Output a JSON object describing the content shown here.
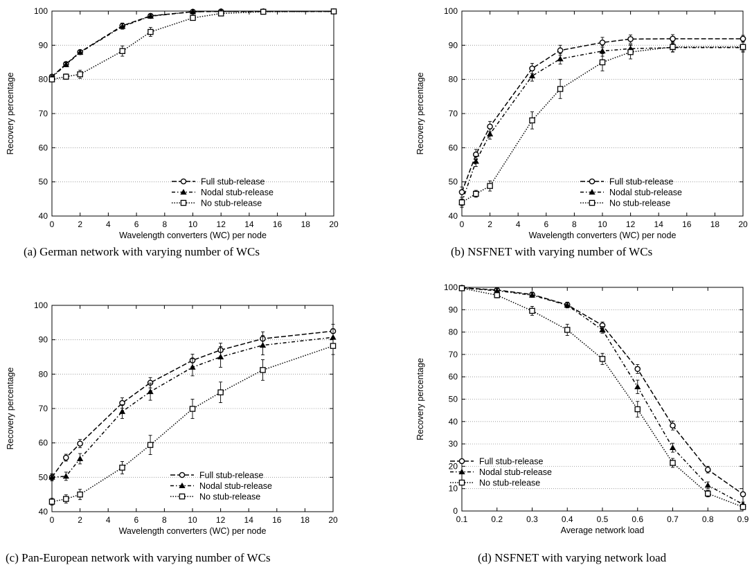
{
  "chart_data": [
    {
      "type": "line",
      "caption": "(a) German network with varying number of WCs",
      "xlabel": "Wavelength converters (WC) per node",
      "ylabel": "Recovery percentage",
      "x_ticks": [
        0,
        2,
        4,
        6,
        8,
        10,
        12,
        14,
        16,
        18,
        20
      ],
      "y_ticks": [
        40,
        50,
        60,
        70,
        80,
        90,
        100
      ],
      "xlim": [
        0,
        20
      ],
      "ylim": [
        40,
        100
      ],
      "grid": "horizontal",
      "legend_position": "bottom-right",
      "x": [
        0,
        1,
        2,
        5,
        7,
        10,
        12,
        15,
        20
      ],
      "series": [
        {
          "name": "Full stub-release",
          "marker": "circle",
          "dash": "long-dash",
          "values": [
            80.8,
            84.5,
            88.0,
            95.7,
            98.6,
            99.8,
            99.9,
            99.9,
            99.9
          ],
          "errors": [
            0.5,
            0.6,
            0.6,
            0.8,
            0.5,
            0.2,
            0.1,
            0.1,
            0.1
          ]
        },
        {
          "name": "Nodal stub-release",
          "marker": "triangle",
          "dash": "dash-dot",
          "values": [
            80.6,
            84.3,
            87.9,
            95.5,
            98.5,
            99.8,
            99.9,
            99.9,
            99.9
          ],
          "errors": [
            0.5,
            0.6,
            0.6,
            0.8,
            0.5,
            0.2,
            0.1,
            0.1,
            0.1
          ]
        },
        {
          "name": "No stub-release",
          "marker": "square",
          "dash": "dotted",
          "values": [
            80.0,
            80.8,
            81.5,
            88.3,
            93.9,
            98.0,
            99.3,
            99.8,
            99.9
          ],
          "errors": [
            0.7,
            0.8,
            1.2,
            1.5,
            1.3,
            0.6,
            0.3,
            0.1,
            0.1
          ]
        }
      ]
    },
    {
      "type": "line",
      "caption": "(b) NSFNET with varying number of WCs",
      "xlabel": "Wavelength converters (WC) per node",
      "ylabel": "Recovery percentage",
      "x_ticks": [
        0,
        2,
        4,
        6,
        8,
        10,
        12,
        14,
        16,
        18,
        20
      ],
      "y_ticks": [
        40,
        50,
        60,
        70,
        80,
        90,
        100
      ],
      "xlim": [
        0,
        20
      ],
      "ylim": [
        40,
        100
      ],
      "grid": "horizontal",
      "legend_position": "bottom-right",
      "x": [
        0,
        1,
        2,
        5,
        7,
        10,
        12,
        15,
        20
      ],
      "series": [
        {
          "name": "Full stub-release",
          "marker": "circle",
          "dash": "long-dash",
          "values": [
            47.0,
            58.0,
            66.2,
            83.2,
            88.5,
            90.8,
            91.8,
            91.9,
            91.9
          ],
          "errors": [
            1.5,
            1.5,
            1.5,
            1.5,
            1.5,
            1.5,
            1.2,
            1.2,
            1.0
          ]
        },
        {
          "name": "Nodal stub-release",
          "marker": "triangle",
          "dash": "dash-dot",
          "values": [
            44.0,
            56.0,
            64.0,
            81.0,
            86.0,
            88.3,
            89.0,
            89.3,
            89.3
          ],
          "errors": [
            1.5,
            1.5,
            1.5,
            1.5,
            1.5,
            1.5,
            1.2,
            1.2,
            1.0
          ]
        },
        {
          "name": "No stub-release",
          "marker": "square",
          "dash": "dotted",
          "values": [
            44.0,
            46.5,
            48.8,
            68.0,
            77.2,
            85.0,
            88.0,
            89.5,
            89.5
          ],
          "errors": [
            1.0,
            1.0,
            1.5,
            2.5,
            2.8,
            2.5,
            2.0,
            1.5,
            1.5
          ]
        }
      ]
    },
    {
      "type": "line",
      "caption": "(c) Pan-European network with varying number of WCs",
      "xlabel": "Wavelength converters (WC) per node",
      "ylabel": "Recovery percentage",
      "x_ticks": [
        0,
        2,
        4,
        6,
        8,
        10,
        12,
        14,
        16,
        18,
        20
      ],
      "y_ticks": [
        40,
        50,
        60,
        70,
        80,
        90,
        100
      ],
      "xlim": [
        0,
        20
      ],
      "ylim": [
        40,
        100
      ],
      "grid": "horizontal",
      "legend_position": "bottom-right",
      "x": [
        0,
        1,
        2,
        5,
        7,
        10,
        12,
        15,
        20
      ],
      "series": [
        {
          "name": "Full stub-release",
          "marker": "circle",
          "dash": "long-dash",
          "values": [
            50.0,
            55.7,
            59.8,
            71.6,
            77.5,
            84.0,
            87.0,
            90.3,
            92.5
          ],
          "errors": [
            1.0,
            1.0,
            1.2,
            1.5,
            1.5,
            1.8,
            2.0,
            2.0,
            2.0
          ]
        },
        {
          "name": "Nodal stub-release",
          "marker": "triangle",
          "dash": "dash-dot",
          "values": [
            50.0,
            50.3,
            55.4,
            69.1,
            74.9,
            82.0,
            85.0,
            88.4,
            90.7
          ],
          "errors": [
            1.0,
            1.2,
            1.5,
            2.0,
            2.5,
            2.5,
            3.0,
            2.8,
            2.5
          ]
        },
        {
          "name": "No stub-release",
          "marker": "square",
          "dash": "dotted",
          "values": [
            42.9,
            43.7,
            45.0,
            52.8,
            59.4,
            69.9,
            74.7,
            81.2,
            88.2
          ],
          "errors": [
            1.0,
            1.2,
            1.5,
            1.8,
            2.8,
            2.8,
            3.0,
            3.0,
            2.5
          ]
        }
      ]
    },
    {
      "type": "line",
      "caption": "(d) NSFNET with varying network load",
      "xlabel": "Average network load",
      "ylabel": "Recovery percentage",
      "x_ticks": [
        "0.1",
        "0.2",
        "0.3",
        "0.4",
        "0.5",
        "0.6",
        "0.7",
        "0.8",
        "0.9"
      ],
      "y_ticks": [
        0,
        10,
        20,
        30,
        40,
        50,
        60,
        70,
        80,
        90,
        100
      ],
      "xlim": [
        0.1,
        0.9
      ],
      "ylim": [
        0,
        100
      ],
      "grid": "horizontal",
      "legend_position": "bottom-left",
      "x": [
        0.1,
        0.2,
        0.3,
        0.4,
        0.5,
        0.6,
        0.7,
        0.8,
        0.9
      ],
      "series": [
        {
          "name": "Full stub-release",
          "marker": "circle",
          "dash": "long-dash",
          "values": [
            99.8,
            98.8,
            96.8,
            92.2,
            83.0,
            63.5,
            38.2,
            18.5,
            7.5
          ],
          "errors": [
            0.3,
            1.0,
            1.0,
            1.2,
            1.5,
            2.0,
            2.0,
            1.5,
            1.0
          ]
        },
        {
          "name": "Nodal stub-release",
          "marker": "triangle",
          "dash": "dash-dot",
          "values": [
            99.7,
            98.5,
            96.5,
            92.0,
            81.0,
            55.5,
            28.3,
            11.5,
            3.0
          ],
          "errors": [
            0.3,
            1.0,
            1.0,
            1.2,
            1.5,
            3.0,
            2.0,
            1.5,
            1.0
          ]
        },
        {
          "name": "No stub-release",
          "marker": "square",
          "dash": "dotted",
          "values": [
            99.6,
            96.5,
            89.5,
            81.0,
            68.0,
            45.5,
            21.5,
            7.8,
            1.8
          ],
          "errors": [
            0.3,
            1.2,
            2.0,
            2.5,
            2.5,
            3.5,
            2.0,
            1.5,
            1.0
          ]
        }
      ]
    }
  ]
}
